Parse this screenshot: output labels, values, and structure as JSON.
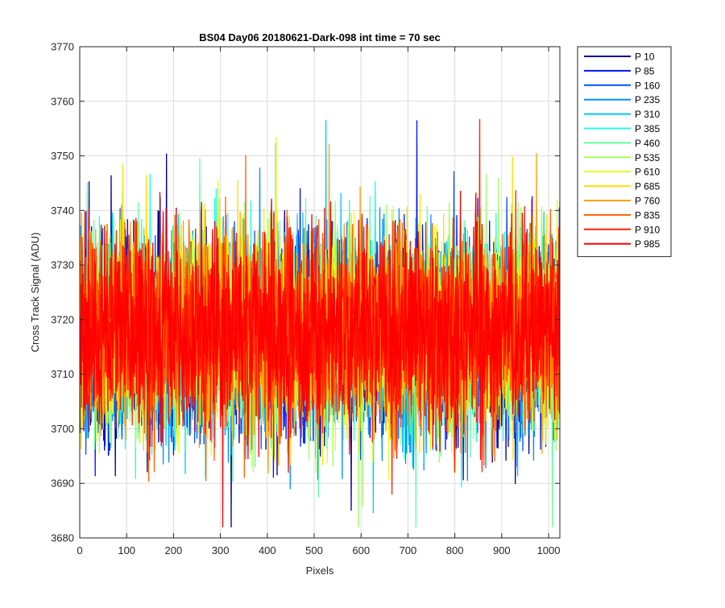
{
  "chart_data": {
    "type": "line",
    "title": "BS04 Day06 20180621-Dark-098 int time = 70 sec",
    "xlabel": "Pixels",
    "ylabel": "Cross Track Signal (ADU)",
    "xlim": [
      0,
      1024
    ],
    "ylim": [
      3680,
      3770
    ],
    "xticks": [
      0,
      100,
      200,
      300,
      400,
      500,
      600,
      700,
      800,
      900,
      1000
    ],
    "yticks": [
      3680,
      3690,
      3700,
      3710,
      3720,
      3730,
      3740,
      3750,
      3760,
      3770
    ],
    "grid": true,
    "legend_position": "outside-top-right",
    "n_points": 1024,
    "series": [
      {
        "name": "P 10",
        "color": "#00008f",
        "mean": 3716.0,
        "std": 9.0,
        "seed": 11
      },
      {
        "name": "P 85",
        "color": "#0010ff",
        "mean": 3716.5,
        "std": 9.0,
        "seed": 23
      },
      {
        "name": "P 160",
        "color": "#0050ff",
        "mean": 3716.5,
        "std": 9.0,
        "seed": 37
      },
      {
        "name": "P 235",
        "color": "#0090ff",
        "mean": 3717.0,
        "std": 9.0,
        "seed": 41
      },
      {
        "name": "P 310",
        "color": "#00c8ff",
        "mean": 3717.0,
        "std": 9.0,
        "seed": 53
      },
      {
        "name": "P 385",
        "color": "#20ffdf",
        "mean": 3717.0,
        "std": 9.0,
        "seed": 67
      },
      {
        "name": "P 460",
        "color": "#60ffa0",
        "mean": 3717.5,
        "std": 9.0,
        "seed": 71
      },
      {
        "name": "P 535",
        "color": "#a0ff60",
        "mean": 3717.5,
        "std": 9.0,
        "seed": 83
      },
      {
        "name": "P 610",
        "color": "#dfff20",
        "mean": 3717.5,
        "std": 9.0,
        "seed": 97
      },
      {
        "name": "P 685",
        "color": "#ffe000",
        "mean": 3718.0,
        "std": 9.0,
        "seed": 101
      },
      {
        "name": "P 760",
        "color": "#ffa000",
        "mean": 3718.0,
        "std": 9.0,
        "seed": 113
      },
      {
        "name": "P 835",
        "color": "#ff6000",
        "mean": 3718.0,
        "std": 9.0,
        "seed": 127
      },
      {
        "name": "P 910",
        "color": "#ff2000",
        "mean": 3718.0,
        "std": 9.0,
        "seed": 131
      },
      {
        "name": "P 985",
        "color": "#ff0000",
        "mean": 3718.0,
        "std": 9.0,
        "seed": 139
      }
    ]
  }
}
